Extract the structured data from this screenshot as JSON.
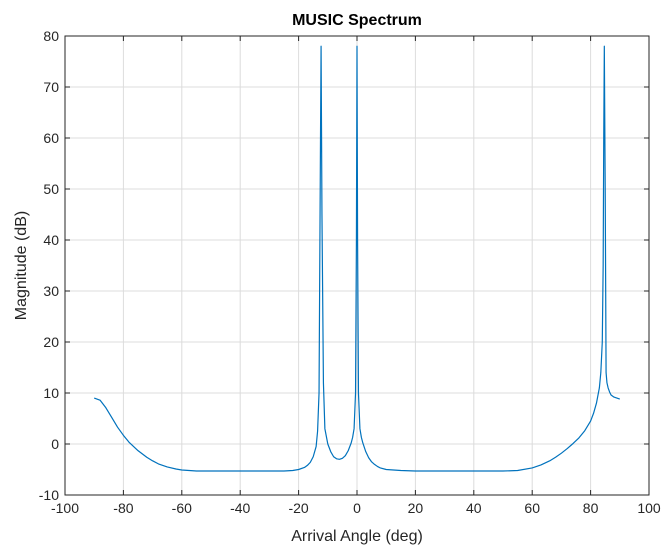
{
  "chart_data": {
    "type": "line",
    "title": "MUSIC Spectrum",
    "xlabel": "Arrival Angle (deg)",
    "ylabel": "Magnitude (dB)",
    "xlim": [
      -100,
      100
    ],
    "ylim": [
      -10,
      80
    ],
    "xticks": [
      -100,
      -80,
      -60,
      -40,
      -20,
      0,
      20,
      40,
      60,
      80,
      100
    ],
    "yticks": [
      -10,
      0,
      10,
      20,
      30,
      40,
      50,
      60,
      70,
      80
    ],
    "grid": true,
    "line_color": "#0072BD",
    "series": [
      {
        "x": [
          -90,
          -88,
          -86,
          -84,
          -82,
          -80,
          -78,
          -75,
          -72,
          -70,
          -68,
          -65,
          -62,
          -60,
          -55,
          -50,
          -45,
          -40,
          -35,
          -30,
          -25,
          -22,
          -20,
          -18,
          -17,
          -16,
          -15,
          -14,
          -13.5,
          -13,
          -12.8,
          -12.5,
          -12.3,
          -12,
          -11.5,
          -11,
          -10,
          -9,
          -8,
          -7,
          -6,
          -5,
          -4,
          -3,
          -2,
          -1.5,
          -1,
          -0.5,
          -0.2,
          0,
          0.2,
          0.5,
          1,
          1.5,
          2,
          3,
          4,
          5,
          6,
          7,
          8,
          10,
          15,
          20,
          25,
          30,
          35,
          40,
          45,
          50,
          55,
          60,
          63,
          66,
          68,
          70,
          72,
          74,
          76,
          78,
          80,
          81,
          82,
          83,
          83.5,
          84,
          84.3,
          84.5,
          84.7,
          85,
          85.3,
          85.6,
          86,
          86.5,
          87,
          88,
          89,
          90
        ],
        "y": [
          9.0,
          8.6,
          7.1,
          5.2,
          3.3,
          1.7,
          0.3,
          -1.3,
          -2.6,
          -3.3,
          -3.9,
          -4.5,
          -4.9,
          -5.1,
          -5.3,
          -5.3,
          -5.3,
          -5.3,
          -5.3,
          -5.3,
          -5.3,
          -5.2,
          -5.0,
          -4.6,
          -4.2,
          -3.6,
          -2.5,
          -0.5,
          2.5,
          10.0,
          30.0,
          60.0,
          78.0,
          45.0,
          12.0,
          3.0,
          0.0,
          -1.5,
          -2.5,
          -2.9,
          -3.0,
          -2.8,
          -2.3,
          -1.3,
          0.2,
          1.3,
          3.0,
          10.0,
          40.0,
          78.0,
          40.0,
          10.0,
          3.0,
          1.3,
          0.2,
          -1.5,
          -2.7,
          -3.5,
          -4.0,
          -4.4,
          -4.7,
          -5.0,
          -5.2,
          -5.3,
          -5.3,
          -5.3,
          -5.3,
          -5.3,
          -5.3,
          -5.3,
          -5.2,
          -4.7,
          -4.1,
          -3.3,
          -2.6,
          -1.8,
          -0.9,
          0.1,
          1.2,
          2.6,
          4.5,
          6.0,
          8.0,
          11.0,
          14.0,
          20.0,
          35.0,
          60.0,
          78.0,
          50.0,
          14.0,
          12.0,
          11.0,
          10.2,
          9.6,
          9.2,
          9.0,
          8.8
        ]
      }
    ]
  }
}
